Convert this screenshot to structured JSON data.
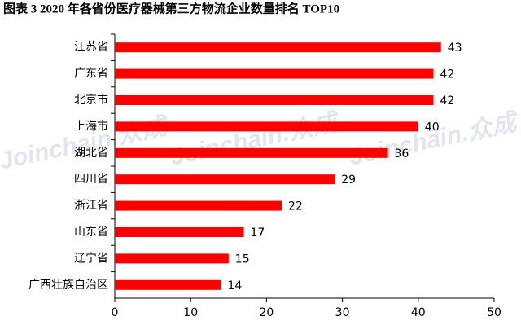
{
  "chart_data": {
    "type": "hbar",
    "title": "图表 3   2020 年各省份医疗器械第三方物流企业数量排名 TOP10",
    "watermark": "Joinchain.众成",
    "categories": [
      "江苏省",
      "广东省",
      "北京市",
      "上海市",
      "湖北省",
      "四川省",
      "浙江省",
      "山东省",
      "辽宁省",
      "广西壮族自治区"
    ],
    "values": [
      43,
      42,
      42,
      40,
      36,
      29,
      22,
      17,
      15,
      14
    ],
    "color": "#ff0000",
    "xlim": [
      0,
      50
    ],
    "xticks": [
      0,
      10,
      20,
      30,
      40,
      50
    ]
  }
}
